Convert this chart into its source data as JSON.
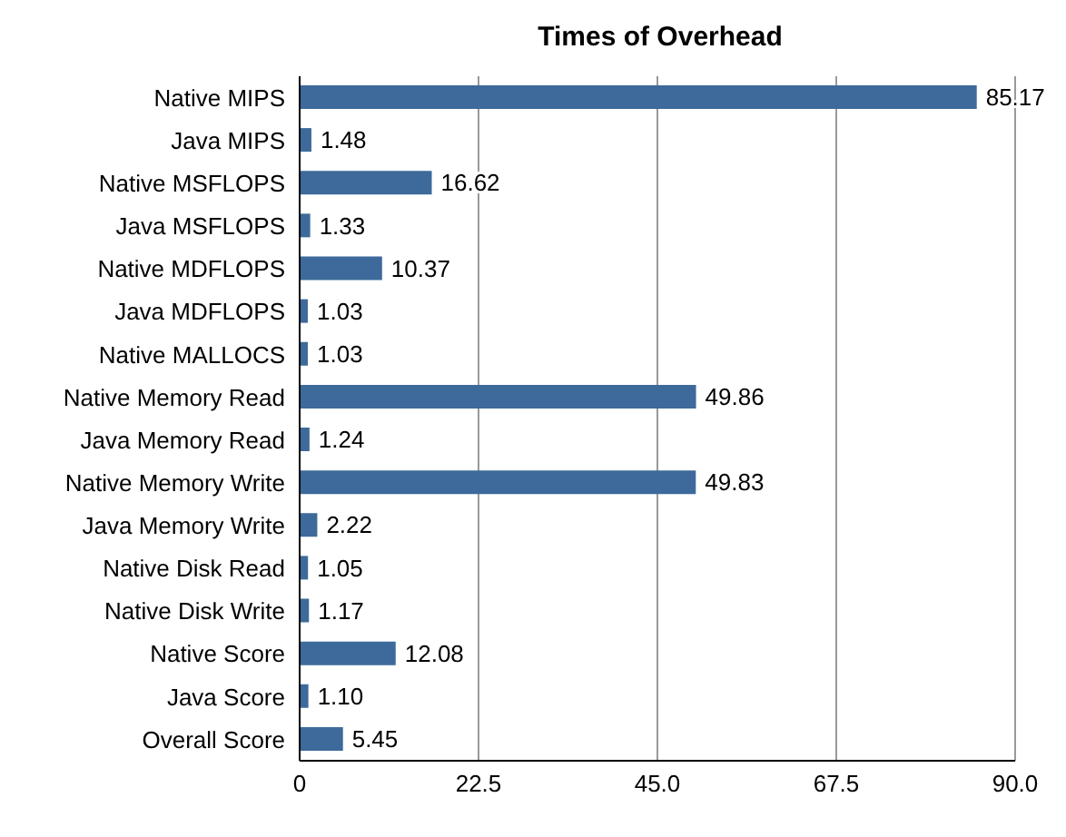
{
  "chart_data": {
    "type": "bar",
    "orientation": "horizontal",
    "title": "Times of Overhead",
    "categories": [
      "Native MIPS",
      "Java MIPS",
      "Native MSFLOPS",
      "Java MSFLOPS",
      "Native MDFLOPS",
      "Java MDFLOPS",
      "Native MALLOCS",
      "Native Memory Read",
      "Java Memory Read",
      "Native Memory Write",
      "Java Memory Write",
      "Native Disk Read",
      "Native Disk Write",
      "Native Score",
      "Java Score",
      "Overall Score"
    ],
    "values": [
      85.17,
      1.48,
      16.62,
      1.33,
      10.37,
      1.03,
      1.03,
      49.86,
      1.24,
      49.83,
      2.22,
      1.05,
      1.17,
      12.08,
      1.1,
      5.45
    ],
    "value_labels": [
      "85.17",
      "1.48",
      "16.62",
      "1.33",
      "10.37",
      "1.03",
      "1.03",
      "49.86",
      "1.24",
      "49.83",
      "2.22",
      "1.05",
      "1.17",
      "12.08",
      "1.10",
      "5.45"
    ],
    "color": "#3d6a9a",
    "xlim": [
      0,
      90
    ],
    "xticks": [
      0,
      22.5,
      {
        "value": 45,
        "label": "45.0"
      },
      67.5,
      {
        "value": 90,
        "label": "90.0"
      }
    ],
    "grid": "x"
  }
}
